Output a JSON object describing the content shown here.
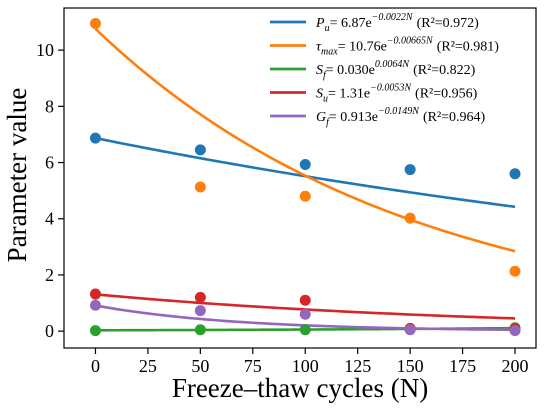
{
  "chart_data": {
    "type": "scatter",
    "xlabel": "Freeze–thaw cycles (N)",
    "ylabel": "Parameter value",
    "xlim": [
      -15,
      210
    ],
    "ylim": [
      -0.6,
      11.5
    ],
    "xticks": [
      0,
      25,
      50,
      75,
      100,
      125,
      150,
      175,
      200
    ],
    "xtick_labels": [
      "0",
      "25",
      "50",
      "75",
      "100",
      "125",
      "150",
      "175",
      "200"
    ],
    "yticks": [
      0,
      2,
      4,
      6,
      8,
      10
    ],
    "ytick_labels": [
      "0",
      "2",
      "4",
      "6",
      "8",
      "10"
    ],
    "grid": false,
    "legend_position": "top-right",
    "series": [
      {
        "name": "Pu",
        "color": "#1f77b4",
        "symbol_base": "P",
        "symbol_sub": "u",
        "equation_text": "= 6.87e",
        "exponent": "−0.0022N",
        "r2_label": "(R²=0.972)",
        "fit": {
          "a": 6.87,
          "b": -0.0022
        },
        "points": [
          {
            "x": 0,
            "y": 6.87
          },
          {
            "x": 50,
            "y": 6.45
          },
          {
            "x": 100,
            "y": 5.93
          },
          {
            "x": 150,
            "y": 5.75
          },
          {
            "x": 200,
            "y": 5.6
          }
        ]
      },
      {
        "name": "τmax",
        "color": "#ff7f0e",
        "symbol_base": "τ",
        "symbol_sub": "max",
        "equation_text": "= 10.76e",
        "exponent": "−0.00665N",
        "r2_label": "(R²=0.981)",
        "fit": {
          "a": 10.76,
          "b": -0.00665
        },
        "points": [
          {
            "x": 0,
            "y": 10.95
          },
          {
            "x": 50,
            "y": 5.13
          },
          {
            "x": 100,
            "y": 4.8
          },
          {
            "x": 150,
            "y": 4.02
          },
          {
            "x": 200,
            "y": 2.13
          }
        ]
      },
      {
        "name": "Sf",
        "color": "#2ca02c",
        "symbol_base": "S",
        "symbol_sub": "f",
        "equation_text": "= 0.030e",
        "exponent": "0.0064N",
        "r2_label": "(R²=0.822)",
        "fit": {
          "a": 0.03,
          "b": 0.0064
        },
        "points": [
          {
            "x": 0,
            "y": 0.02
          },
          {
            "x": 50,
            "y": 0.05
          },
          {
            "x": 100,
            "y": 0.05
          },
          {
            "x": 150,
            "y": 0.07
          },
          {
            "x": 200,
            "y": 0.12
          }
        ]
      },
      {
        "name": "Su",
        "color": "#d62728",
        "symbol_base": "S",
        "symbol_sub": "u",
        "equation_text": "= 1.31e",
        "exponent": "−0.0053N",
        "r2_label": "(R²=0.956)",
        "fit": {
          "a": 1.31,
          "b": -0.0053
        },
        "points": [
          {
            "x": 0,
            "y": 1.32
          },
          {
            "x": 50,
            "y": 1.2
          },
          {
            "x": 100,
            "y": 1.1
          },
          {
            "x": 150,
            "y": 0.1
          },
          {
            "x": 200,
            "y": 0.08
          }
        ]
      },
      {
        "name": "Gf",
        "color": "#9467bd",
        "symbol_base": "G",
        "symbol_sub": "f",
        "equation_text": "= 0.913e",
        "exponent": "−0.0149N",
        "r2_label": "(R²=0.964)",
        "fit": {
          "a": 0.913,
          "b": -0.0149
        },
        "points": [
          {
            "x": 0,
            "y": 0.92
          },
          {
            "x": 50,
            "y": 0.73
          },
          {
            "x": 100,
            "y": 0.6
          },
          {
            "x": 150,
            "y": 0.05
          },
          {
            "x": 200,
            "y": 0.02
          }
        ]
      }
    ]
  }
}
